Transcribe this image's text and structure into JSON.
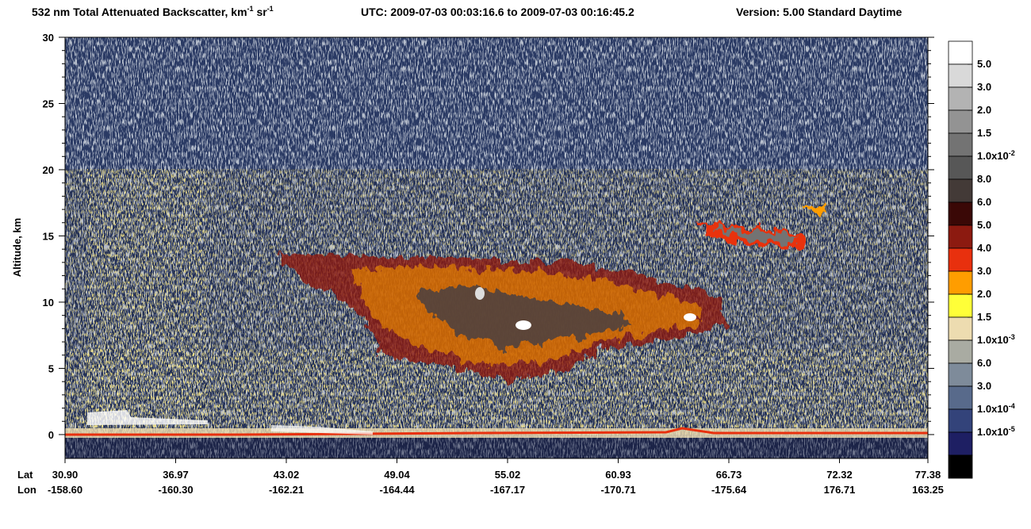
{
  "chart_data": {
    "type": "curtain",
    "title": [
      "532 nm Total Attenuated Backscatter, km",
      "-1",
      " sr",
      "-1"
    ],
    "header": [
      "UTC:  2009-07-03 00:03:16.6  to  2009-07-03 00:16:45.2",
      "Version: 5.00  Standard  Daytime"
    ],
    "ylabel": "Altitude, km",
    "ylim": [
      -1.8,
      30
    ],
    "yticks": [
      0,
      5,
      10,
      15,
      20,
      25,
      30
    ],
    "x_row_labels": [
      "Lat",
      "Lon"
    ],
    "x_ticks": [
      {
        "lat": "30.90",
        "lon": "-158.60"
      },
      {
        "lat": "36.97",
        "lon": "-160.30"
      },
      {
        "lat": "43.02",
        "lon": "-162.21"
      },
      {
        "lat": "49.04",
        "lon": "-164.44"
      },
      {
        "lat": "55.02",
        "lon": "-167.17"
      },
      {
        "lat": "60.93",
        "lon": "-170.71"
      },
      {
        "lat": "66.73",
        "lon": "-175.64"
      },
      {
        "lat": "72.32",
        "lon": "176.71"
      },
      {
        "lat": "77.38",
        "lon": "163.25"
      }
    ],
    "colorbar": {
      "colors": [
        "#ffffff",
        "#d9d9d9",
        "#b3b3b3",
        "#939393",
        "#737373",
        "#575757",
        "#433a37",
        "#3a0806",
        "#8c1a10",
        "#e8300e",
        "#ff9d00",
        "#ffff38",
        "#eddcb0",
        "#a9aba2",
        "#7e8b9a",
        "#586a8b",
        "#33437a",
        "#1e1f63",
        "#000000"
      ],
      "labels": [
        [
          "5.0"
        ],
        [
          "3.0"
        ],
        [
          "2.0"
        ],
        [
          "1.5"
        ],
        [
          "1.0x10",
          "-2"
        ],
        [
          "8.0"
        ],
        [
          "6.0"
        ],
        [
          "5.0"
        ],
        [
          "4.0"
        ],
        [
          "3.0"
        ],
        [
          "2.0"
        ],
        [
          "1.5"
        ],
        [
          "1.0x10",
          "-3"
        ],
        [
          "6.0"
        ],
        [
          "3.0"
        ],
        [
          "1.0x10",
          "-4"
        ],
        [
          "1.0x10",
          "-5"
        ]
      ]
    }
  }
}
